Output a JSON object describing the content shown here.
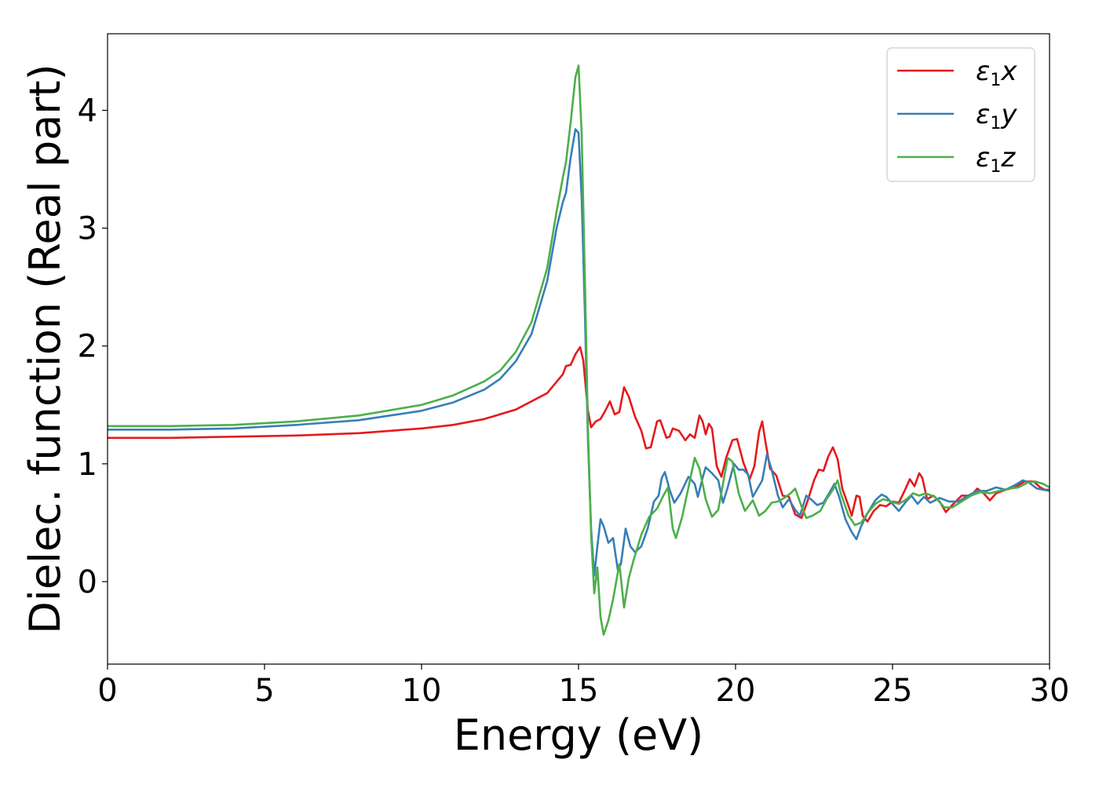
{
  "chart_data": {
    "type": "line",
    "xlabel": "Energy (eV)",
    "ylabel": "Dielec. function (Real part)",
    "xlim": [
      0,
      30
    ],
    "ylim": [
      -0.7,
      4.65
    ],
    "xticks": [
      0,
      5,
      10,
      15,
      20,
      25,
      30
    ],
    "yticks": [
      0,
      1,
      2,
      3,
      4
    ],
    "grid": false,
    "legend_position": "top-right",
    "series": [
      {
        "name": "ε1x",
        "legend": {
          "main": "ε",
          "sub": "1",
          "suffix": "x"
        },
        "color": "#e41a1c",
        "points": [
          [
            0,
            1.22
          ],
          [
            2,
            1.22
          ],
          [
            4,
            1.23
          ],
          [
            6,
            1.24
          ],
          [
            8,
            1.26
          ],
          [
            10,
            1.3
          ],
          [
            11,
            1.33
          ],
          [
            12,
            1.38
          ],
          [
            13,
            1.46
          ],
          [
            14,
            1.6
          ],
          [
            14.5,
            1.76
          ],
          [
            14.6,
            1.83
          ],
          [
            14.75,
            1.84
          ],
          [
            14.9,
            1.93
          ],
          [
            15.05,
            1.99
          ],
          [
            15.15,
            1.88
          ],
          [
            15.3,
            1.45
          ],
          [
            15.4,
            1.31
          ],
          [
            15.55,
            1.36
          ],
          [
            15.7,
            1.38
          ],
          [
            15.85,
            1.45
          ],
          [
            16,
            1.53
          ],
          [
            16.15,
            1.42
          ],
          [
            16.3,
            1.44
          ],
          [
            16.45,
            1.65
          ],
          [
            16.6,
            1.57
          ],
          [
            16.8,
            1.4
          ],
          [
            17,
            1.28
          ],
          [
            17.15,
            1.13
          ],
          [
            17.3,
            1.14
          ],
          [
            17.5,
            1.36
          ],
          [
            17.6,
            1.37
          ],
          [
            17.8,
            1.22
          ],
          [
            17.9,
            1.23
          ],
          [
            18,
            1.3
          ],
          [
            18.2,
            1.28
          ],
          [
            18.4,
            1.2
          ],
          [
            18.55,
            1.25
          ],
          [
            18.7,
            1.22
          ],
          [
            18.85,
            1.41
          ],
          [
            18.95,
            1.36
          ],
          [
            19.05,
            1.25
          ],
          [
            19.15,
            1.34
          ],
          [
            19.25,
            1.3
          ],
          [
            19.4,
            0.98
          ],
          [
            19.55,
            0.89
          ],
          [
            19.7,
            1.05
          ],
          [
            19.9,
            1.2
          ],
          [
            20.05,
            1.21
          ],
          [
            20.25,
            1.01
          ],
          [
            20.45,
            0.87
          ],
          [
            20.6,
            0.98
          ],
          [
            20.75,
            1.27
          ],
          [
            20.85,
            1.36
          ],
          [
            20.95,
            1.19
          ],
          [
            21.1,
            0.96
          ],
          [
            21.3,
            0.9
          ],
          [
            21.5,
            0.73
          ],
          [
            21.7,
            0.72
          ],
          [
            21.9,
            0.57
          ],
          [
            22.1,
            0.54
          ],
          [
            22.3,
            0.69
          ],
          [
            22.5,
            0.86
          ],
          [
            22.65,
            0.95
          ],
          [
            22.8,
            0.94
          ],
          [
            22.95,
            1.06
          ],
          [
            23.1,
            1.14
          ],
          [
            23.25,
            1.04
          ],
          [
            23.4,
            0.79
          ],
          [
            23.6,
            0.64
          ],
          [
            23.7,
            0.56
          ],
          [
            23.85,
            0.73
          ],
          [
            23.95,
            0.72
          ],
          [
            24.05,
            0.56
          ],
          [
            24.2,
            0.51
          ],
          [
            24.4,
            0.6
          ],
          [
            24.6,
            0.65
          ],
          [
            24.8,
            0.64
          ],
          [
            25,
            0.68
          ],
          [
            25.2,
            0.67
          ],
          [
            25.4,
            0.78
          ],
          [
            25.55,
            0.87
          ],
          [
            25.7,
            0.81
          ],
          [
            25.85,
            0.92
          ],
          [
            25.95,
            0.88
          ],
          [
            26.1,
            0.7
          ],
          [
            26.3,
            0.73
          ],
          [
            26.5,
            0.68
          ],
          [
            26.7,
            0.59
          ],
          [
            26.9,
            0.65
          ],
          [
            27.2,
            0.73
          ],
          [
            27.5,
            0.73
          ],
          [
            27.7,
            0.79
          ],
          [
            27.9,
            0.75
          ],
          [
            28.1,
            0.69
          ],
          [
            28.3,
            0.75
          ],
          [
            28.6,
            0.78
          ],
          [
            28.9,
            0.8
          ],
          [
            29.2,
            0.85
          ],
          [
            29.5,
            0.85
          ],
          [
            29.7,
            0.8
          ],
          [
            29.85,
            0.78
          ],
          [
            30,
            0.78
          ]
        ]
      },
      {
        "name": "ε1y",
        "legend": {
          "main": "ε",
          "sub": "1",
          "suffix": "y"
        },
        "color": "#377eb8",
        "points": [
          [
            0,
            1.29
          ],
          [
            2,
            1.29
          ],
          [
            4,
            1.3
          ],
          [
            6,
            1.33
          ],
          [
            8,
            1.37
          ],
          [
            10,
            1.45
          ],
          [
            11,
            1.52
          ],
          [
            12,
            1.63
          ],
          [
            12.5,
            1.72
          ],
          [
            13,
            1.87
          ],
          [
            13.5,
            2.1
          ],
          [
            14,
            2.55
          ],
          [
            14.3,
            3.0
          ],
          [
            14.5,
            3.22
          ],
          [
            14.6,
            3.3
          ],
          [
            14.75,
            3.6
          ],
          [
            14.9,
            3.84
          ],
          [
            15,
            3.81
          ],
          [
            15.1,
            3.25
          ],
          [
            15.2,
            2.3
          ],
          [
            15.3,
            1.2
          ],
          [
            15.4,
            0.45
          ],
          [
            15.5,
            0.05
          ],
          [
            15.6,
            0.3
          ],
          [
            15.7,
            0.53
          ],
          [
            15.8,
            0.47
          ],
          [
            15.95,
            0.33
          ],
          [
            16.1,
            0.37
          ],
          [
            16.25,
            0.1
          ],
          [
            16.35,
            0.15
          ],
          [
            16.5,
            0.45
          ],
          [
            16.65,
            0.3
          ],
          [
            16.8,
            0.25
          ],
          [
            17,
            0.3
          ],
          [
            17.2,
            0.45
          ],
          [
            17.4,
            0.68
          ],
          [
            17.55,
            0.73
          ],
          [
            17.65,
            0.88
          ],
          [
            17.75,
            0.93
          ],
          [
            17.9,
            0.78
          ],
          [
            18.05,
            0.67
          ],
          [
            18.25,
            0.75
          ],
          [
            18.5,
            0.89
          ],
          [
            18.7,
            0.83
          ],
          [
            18.8,
            0.72
          ],
          [
            18.95,
            0.88
          ],
          [
            19.05,
            0.97
          ],
          [
            19.25,
            0.92
          ],
          [
            19.45,
            0.86
          ],
          [
            19.6,
            0.67
          ],
          [
            19.75,
            0.8
          ],
          [
            19.95,
            1.0
          ],
          [
            20.1,
            0.95
          ],
          [
            20.25,
            0.95
          ],
          [
            20.4,
            0.91
          ],
          [
            20.55,
            0.72
          ],
          [
            20.7,
            0.79
          ],
          [
            20.85,
            0.86
          ],
          [
            21,
            1.08
          ],
          [
            21.15,
            0.95
          ],
          [
            21.35,
            0.73
          ],
          [
            21.5,
            0.63
          ],
          [
            21.7,
            0.7
          ],
          [
            21.9,
            0.61
          ],
          [
            22.05,
            0.56
          ],
          [
            22.25,
            0.73
          ],
          [
            22.4,
            0.7
          ],
          [
            22.6,
            0.65
          ],
          [
            22.8,
            0.67
          ],
          [
            23,
            0.76
          ],
          [
            23.15,
            0.83
          ],
          [
            23.3,
            0.72
          ],
          [
            23.5,
            0.53
          ],
          [
            23.7,
            0.42
          ],
          [
            23.85,
            0.36
          ],
          [
            24,
            0.47
          ],
          [
            24.2,
            0.58
          ],
          [
            24.45,
            0.69
          ],
          [
            24.65,
            0.74
          ],
          [
            24.8,
            0.72
          ],
          [
            25,
            0.66
          ],
          [
            25.2,
            0.6
          ],
          [
            25.4,
            0.67
          ],
          [
            25.6,
            0.73
          ],
          [
            25.8,
            0.66
          ],
          [
            26,
            0.72
          ],
          [
            26.2,
            0.67
          ],
          [
            26.5,
            0.71
          ],
          [
            26.8,
            0.68
          ],
          [
            27.1,
            0.68
          ],
          [
            27.4,
            0.73
          ],
          [
            27.7,
            0.77
          ],
          [
            28,
            0.77
          ],
          [
            28.3,
            0.8
          ],
          [
            28.6,
            0.78
          ],
          [
            28.9,
            0.82
          ],
          [
            29.15,
            0.86
          ],
          [
            29.35,
            0.84
          ],
          [
            29.6,
            0.79
          ],
          [
            30,
            0.77
          ]
        ]
      },
      {
        "name": "ε1z",
        "legend": {
          "main": "ε",
          "sub": "1",
          "suffix": "z"
        },
        "color": "#4daf4a",
        "points": [
          [
            0,
            1.32
          ],
          [
            2,
            1.32
          ],
          [
            4,
            1.33
          ],
          [
            6,
            1.36
          ],
          [
            8,
            1.41
          ],
          [
            10,
            1.5
          ],
          [
            11,
            1.58
          ],
          [
            12,
            1.7
          ],
          [
            12.5,
            1.79
          ],
          [
            13,
            1.95
          ],
          [
            13.5,
            2.2
          ],
          [
            14,
            2.66
          ],
          [
            14.3,
            3.14
          ],
          [
            14.5,
            3.43
          ],
          [
            14.6,
            3.56
          ],
          [
            14.75,
            3.9
          ],
          [
            14.9,
            4.28
          ],
          [
            15,
            4.38
          ],
          [
            15.1,
            3.8
          ],
          [
            15.2,
            2.6
          ],
          [
            15.3,
            1.3
          ],
          [
            15.4,
            0.4
          ],
          [
            15.5,
            -0.1
          ],
          [
            15.6,
            0.12
          ],
          [
            15.7,
            -0.3
          ],
          [
            15.8,
            -0.45
          ],
          [
            15.95,
            -0.33
          ],
          [
            16.1,
            -0.15
          ],
          [
            16.3,
            0.15
          ],
          [
            16.45,
            -0.22
          ],
          [
            16.6,
            0.03
          ],
          [
            16.75,
            0.18
          ],
          [
            17,
            0.4
          ],
          [
            17.25,
            0.55
          ],
          [
            17.5,
            0.62
          ],
          [
            17.7,
            0.73
          ],
          [
            17.85,
            0.8
          ],
          [
            18,
            0.45
          ],
          [
            18.1,
            0.37
          ],
          [
            18.3,
            0.55
          ],
          [
            18.5,
            0.8
          ],
          [
            18.7,
            1.05
          ],
          [
            18.85,
            0.96
          ],
          [
            19.05,
            0.7
          ],
          [
            19.25,
            0.55
          ],
          [
            19.45,
            0.61
          ],
          [
            19.6,
            0.83
          ],
          [
            19.75,
            1.05
          ],
          [
            19.9,
            1.02
          ],
          [
            20.1,
            0.75
          ],
          [
            20.3,
            0.6
          ],
          [
            20.55,
            0.69
          ],
          [
            20.75,
            0.56
          ],
          [
            20.95,
            0.6
          ],
          [
            21.15,
            0.67
          ],
          [
            21.35,
            0.68
          ],
          [
            21.55,
            0.71
          ],
          [
            21.75,
            0.75
          ],
          [
            21.9,
            0.79
          ],
          [
            22.1,
            0.64
          ],
          [
            22.25,
            0.54
          ],
          [
            22.45,
            0.56
          ],
          [
            22.7,
            0.6
          ],
          [
            22.9,
            0.7
          ],
          [
            23.1,
            0.78
          ],
          [
            23.25,
            0.86
          ],
          [
            23.35,
            0.75
          ],
          [
            23.6,
            0.56
          ],
          [
            23.8,
            0.48
          ],
          [
            24,
            0.5
          ],
          [
            24.2,
            0.58
          ],
          [
            24.45,
            0.66
          ],
          [
            24.7,
            0.7
          ],
          [
            24.95,
            0.68
          ],
          [
            25.2,
            0.66
          ],
          [
            25.45,
            0.7
          ],
          [
            25.65,
            0.75
          ],
          [
            25.85,
            0.73
          ],
          [
            26.05,
            0.75
          ],
          [
            26.35,
            0.72
          ],
          [
            26.65,
            0.63
          ],
          [
            26.9,
            0.63
          ],
          [
            27.2,
            0.68
          ],
          [
            27.5,
            0.73
          ],
          [
            27.8,
            0.76
          ],
          [
            28.1,
            0.75
          ],
          [
            28.4,
            0.77
          ],
          [
            28.7,
            0.79
          ],
          [
            29,
            0.8
          ],
          [
            29.3,
            0.84
          ],
          [
            29.55,
            0.85
          ],
          [
            29.8,
            0.83
          ],
          [
            30,
            0.8
          ]
        ]
      }
    ]
  }
}
